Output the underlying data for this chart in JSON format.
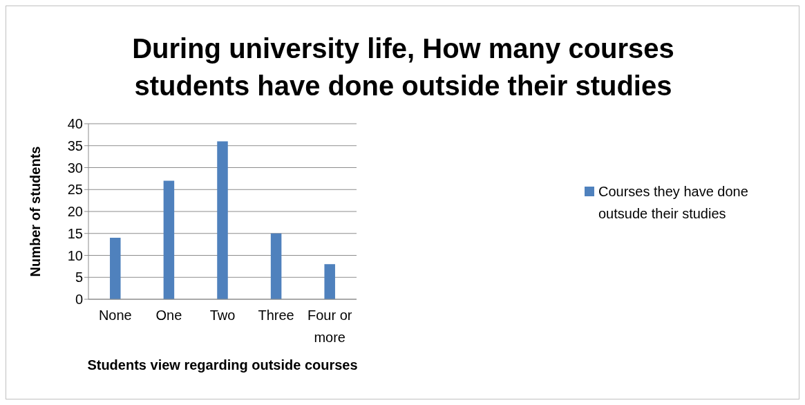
{
  "chart_data": {
    "type": "bar",
    "title": "During university life, How many courses students have done outside their studies",
    "xlabel": "Students view regarding outside courses",
    "ylabel": "Number of students",
    "categories": [
      "None",
      "One",
      "Two",
      "Three",
      "Four or more"
    ],
    "series": [
      {
        "name": "Courses they have done outsude their studies",
        "color": "#4f81bd",
        "values": [
          14,
          27,
          36,
          15,
          8
        ]
      }
    ],
    "ylim": [
      0,
      40
    ],
    "yticks": [
      0,
      5,
      10,
      15,
      20,
      25,
      30,
      35,
      40
    ],
    "grid": "y",
    "legend": "right"
  }
}
